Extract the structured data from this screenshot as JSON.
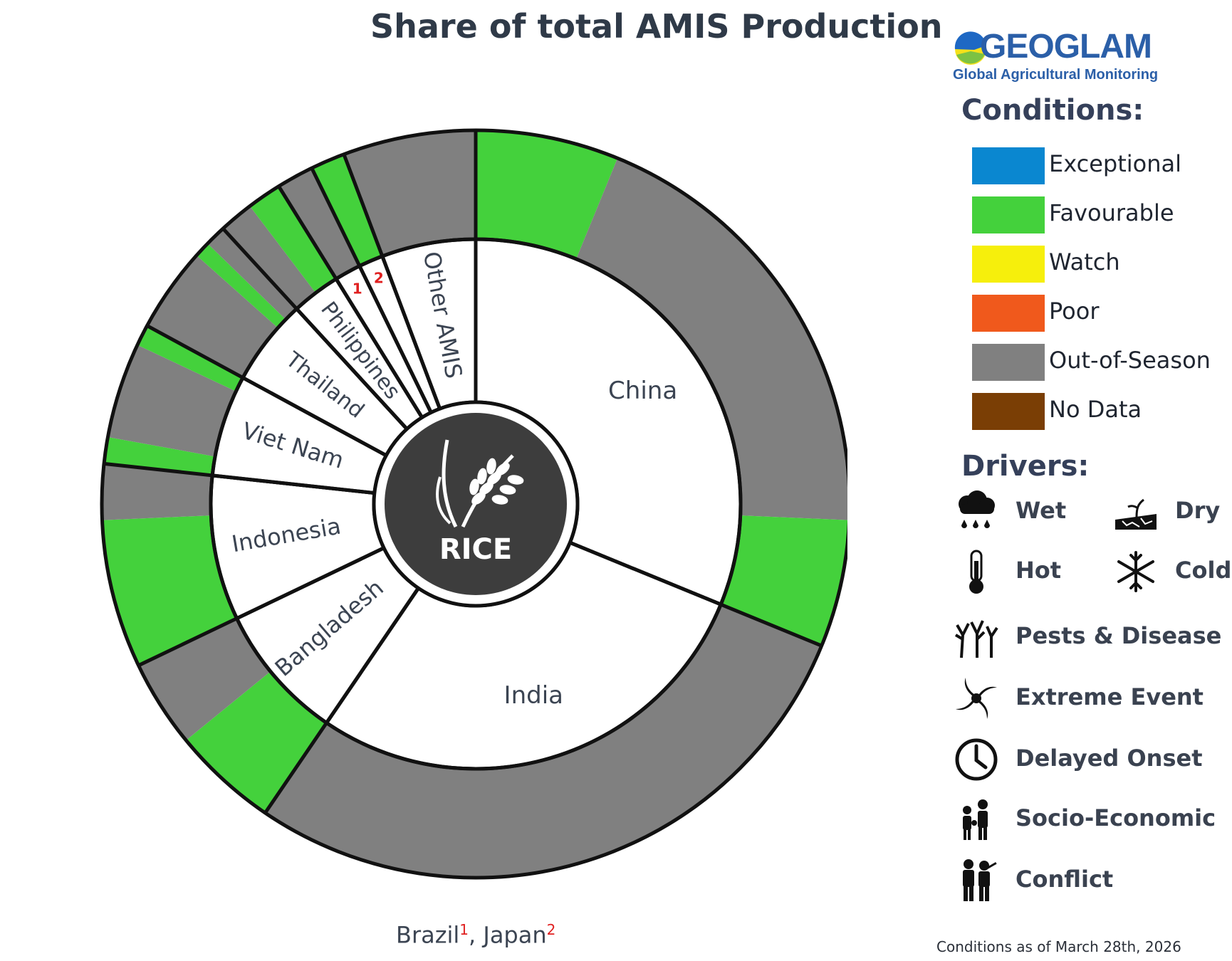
{
  "chart_data": {
    "type": "sunburst",
    "title": "Share of total AMIS Production",
    "center_label": "RICE",
    "colors": {
      "Exceptional": "#0a87d0",
      "Favourable": "#44d13c",
      "Watch": "#f6ef0c",
      "Poor": "#f0591c",
      "Out-of-Season": "#808080",
      "No Data": "#7a3e05"
    },
    "countries": [
      {
        "name": "China",
        "label": "China",
        "share": 27.2,
        "regions": [
          {
            "condition": "Favourable",
            "share": 5.4
          },
          {
            "condition": "Out-of-Season",
            "share": 17.0
          },
          {
            "condition": "Favourable",
            "share": 4.8
          }
        ]
      },
      {
        "name": "India",
        "label": "India",
        "share": 24.7,
        "regions": [
          {
            "condition": "Out-of-Season",
            "share": 24.7
          }
        ]
      },
      {
        "name": "Bangladesh",
        "label": "Bangladesh",
        "share": 7.3,
        "regions": [
          {
            "condition": "Favourable",
            "share": 4.0
          },
          {
            "condition": "Out-of-Season",
            "share": 3.3
          }
        ]
      },
      {
        "name": "Indonesia",
        "label": "Indonesia",
        "share": 7.7,
        "regions": [
          {
            "condition": "Favourable",
            "share": 5.6
          },
          {
            "condition": "Out-of-Season",
            "share": 2.1
          }
        ]
      },
      {
        "name": "Viet Nam",
        "label": "Viet Nam",
        "share": 5.4,
        "regions": [
          {
            "condition": "Favourable",
            "share": 1.0
          },
          {
            "condition": "Out-of-Season",
            "share": 3.6
          },
          {
            "condition": "Favourable",
            "share": 0.8
          }
        ]
      },
      {
        "name": "Thailand",
        "label": "Thailand",
        "share": 4.6,
        "regions": [
          {
            "condition": "Out-of-Season",
            "share": 3.2
          },
          {
            "condition": "Favourable",
            "share": 0.6
          },
          {
            "condition": "Out-of-Season",
            "share": 0.8
          }
        ]
      },
      {
        "name": "Philippines",
        "label": "Philippines",
        "share": 2.6,
        "regions": [
          {
            "condition": "Out-of-Season",
            "share": 1.3
          },
          {
            "condition": "Favourable",
            "share": 1.3
          }
        ]
      },
      {
        "name": "Brazil",
        "label": "1",
        "share": 1.4,
        "regions": [
          {
            "condition": "Out-of-Season",
            "share": 1.4
          }
        ]
      },
      {
        "name": "Japan",
        "label": "2",
        "share": 1.3,
        "regions": [
          {
            "condition": "Favourable",
            "share": 1.3
          }
        ]
      },
      {
        "name": "Other AMIS",
        "label": "Other AMIS",
        "share": 5.0,
        "regions": [
          {
            "condition": "Out-of-Season",
            "share": 5.0
          }
        ]
      }
    ]
  },
  "footnote": {
    "brazil": "Brazil",
    "brazil_sup": "1",
    "sep": ", ",
    "japan": "Japan",
    "japan_sup": "2"
  },
  "legend": {
    "logo": {
      "name": "GEOGLAM",
      "subtitle": "Global Agricultural Monitoring"
    },
    "conditions_title": "Conditions:",
    "conditions": [
      {
        "label": "Exceptional",
        "color": "#0a87d0"
      },
      {
        "label": "Favourable",
        "color": "#44d13c"
      },
      {
        "label": "Watch",
        "color": "#f6ef0c"
      },
      {
        "label": "Poor",
        "color": "#f0591c"
      },
      {
        "label": "Out-of-Season",
        "color": "#808080"
      },
      {
        "label": "No Data",
        "color": "#7a3e05"
      }
    ],
    "drivers_title": "Drivers:",
    "drivers": [
      {
        "label": "Wet",
        "icon": "wet-icon"
      },
      {
        "label": "Dry",
        "icon": "dry-icon"
      },
      {
        "label": "Hot",
        "icon": "hot-icon"
      },
      {
        "label": "Cold",
        "icon": "cold-icon"
      },
      {
        "label": "Pests & Disease",
        "icon": "pests-disease-icon"
      },
      {
        "label": "Extreme Event",
        "icon": "extreme-event-icon"
      },
      {
        "label": "Delayed Onset",
        "icon": "delayed-onset-icon"
      },
      {
        "label": "Socio-Economic",
        "icon": "socio-economic-icon"
      },
      {
        "label": "Conflict",
        "icon": "conflict-icon"
      }
    ]
  },
  "as_of": "Conditions as of March 28th, 2026"
}
